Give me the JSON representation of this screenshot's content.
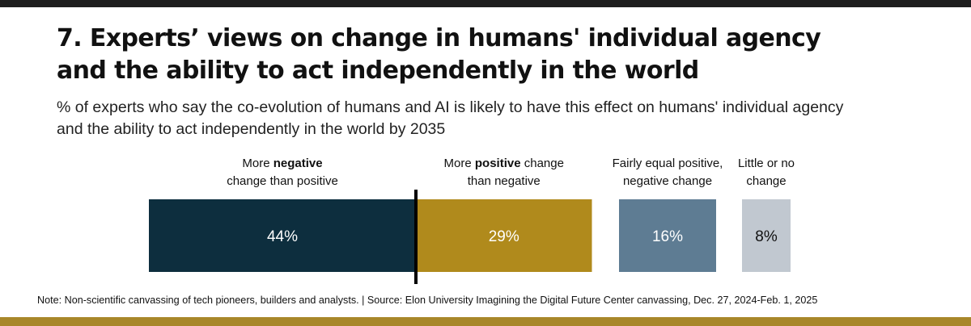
{
  "title_line1": "7. Experts’ views on change in humans' individual agency",
  "title_line2": "and the ability to act independently in the world",
  "subtitle": "% of experts who say the co-evolution of humans and AI is likely to have this effect on humans' individual agency and the ability to act independently in the world by 2035",
  "note": "Note: Non-scientific canvassing of tech pioneers, builders and analysts. | Source: Elon University Imagining the Digital Future Center canvassing,  Dec. 27, 2024-Feb. 1, 2025",
  "chart_data": {
    "type": "bar",
    "orientation": "horizontal-stacked-groups",
    "categories": [
      "More negative change than positive",
      "More positive change than negative",
      "Fairly equal positive, negative change",
      "Little or no change"
    ],
    "labels": [
      {
        "pre": "More ",
        "bold": "negative",
        "line2": "change than positive"
      },
      {
        "pre": "More ",
        "bold": "positive",
        "post": " change",
        "line2": "than negative"
      },
      {
        "line1": "Fairly equal positive,",
        "line2": "negative change"
      },
      {
        "line1": "Little or no",
        "line2": "change"
      }
    ],
    "values": [
      44,
      29,
      16,
      8
    ],
    "value_labels": [
      "44%",
      "29%",
      "16%",
      "8%"
    ],
    "colors": [
      "#0d2e3e",
      "#b08a1c",
      "#5e7c93",
      "#c1c8d0"
    ],
    "label_colors": [
      "#ffffff",
      "#ffffff",
      "#ffffff",
      "#111111"
    ]
  }
}
